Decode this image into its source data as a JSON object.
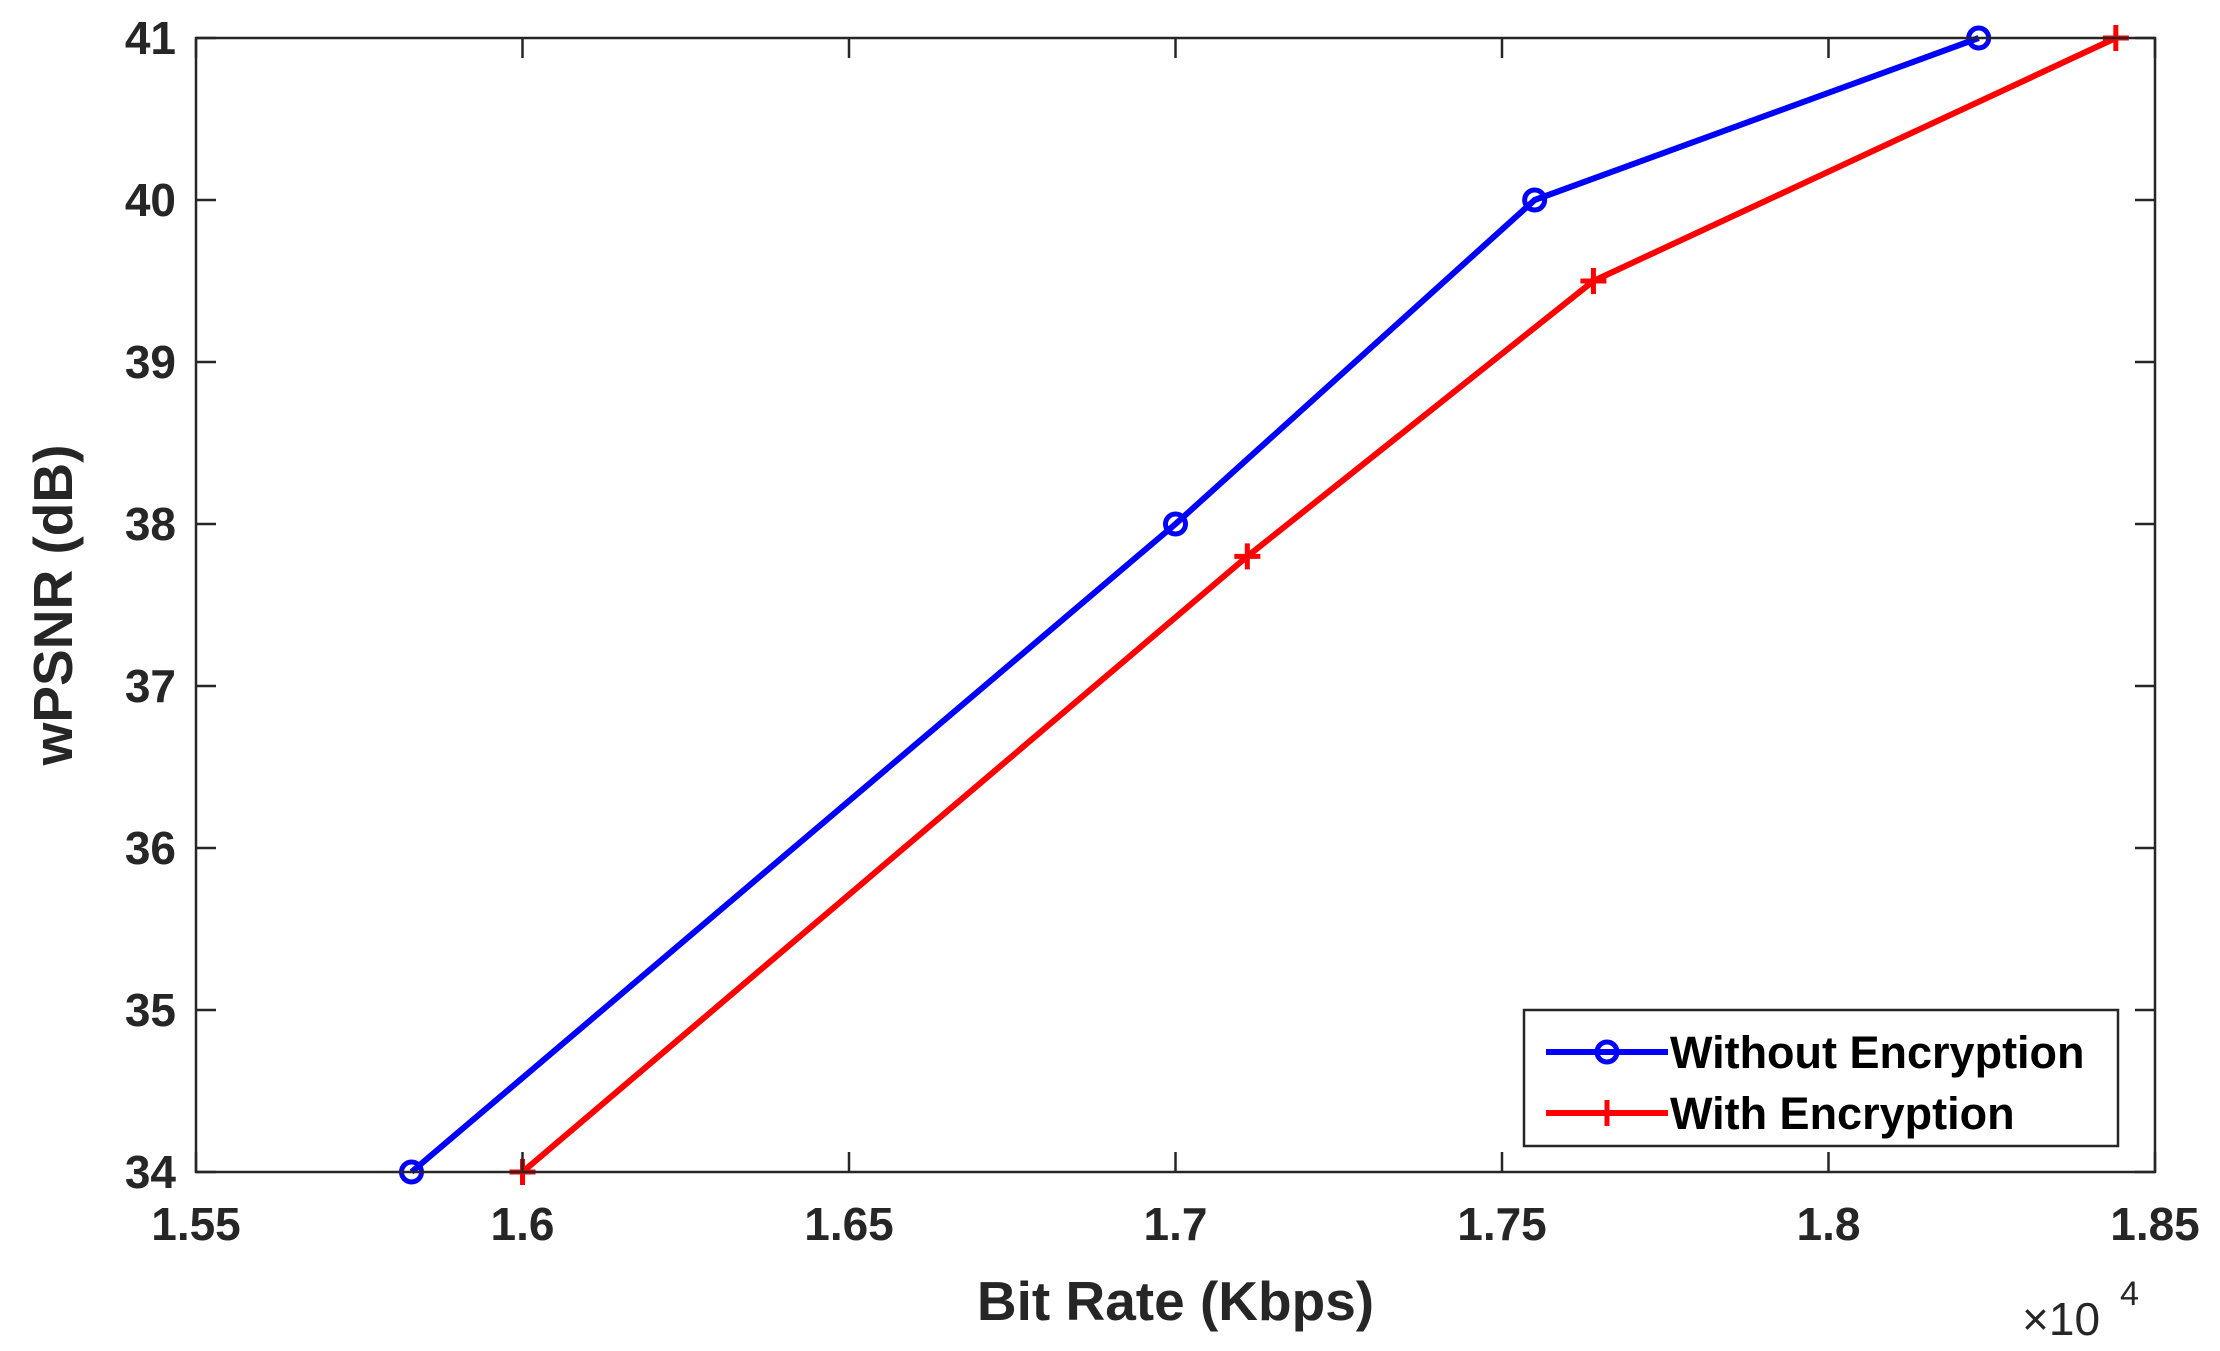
{
  "chart_data": {
    "type": "line",
    "title": "",
    "xlabel": "Bit Rate (Kbps)",
    "ylabel": "wPSNR (dB)",
    "x_multiplier_label": "×10",
    "x_multiplier_exponent": "4",
    "xlim": [
      1.55,
      1.85
    ],
    "ylim": [
      34,
      41
    ],
    "xticks": [
      1.55,
      1.6,
      1.65,
      1.7,
      1.75,
      1.8,
      1.85
    ],
    "xtick_labels": [
      "1.55",
      "1.6",
      "1.65",
      "1.7",
      "1.75",
      "1.8",
      "1.85"
    ],
    "yticks": [
      34,
      35,
      36,
      37,
      38,
      39,
      40,
      41
    ],
    "ytick_labels": [
      "34",
      "35",
      "36",
      "37",
      "38",
      "39",
      "40",
      "41"
    ],
    "grid": false,
    "legend_position": "bottom-right",
    "series": [
      {
        "name": "Without Encryption",
        "color": "#0000ff",
        "marker": "circle",
        "x": [
          1.583,
          1.7,
          1.755,
          1.823
        ],
        "y": [
          34,
          38,
          40,
          41
        ]
      },
      {
        "name": "With Encryption",
        "color": "#ff0000",
        "marker": "plus",
        "x": [
          1.6,
          1.711,
          1.764,
          1.844
        ],
        "y": [
          34,
          37.8,
          39.5,
          41
        ]
      }
    ]
  }
}
